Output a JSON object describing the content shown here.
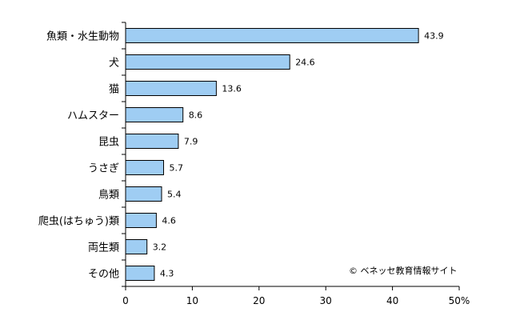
{
  "chart_data": {
    "type": "bar",
    "orientation": "horizontal",
    "categories": [
      "魚類・水生動物",
      "犬",
      "猫",
      "ハムスター",
      "昆虫",
      "うさぎ",
      "鳥類",
      "爬虫(はちゅう)類",
      "両生類",
      "その他"
    ],
    "values": [
      43.9,
      24.6,
      13.6,
      8.6,
      7.9,
      5.7,
      5.4,
      4.6,
      3.2,
      4.3
    ],
    "value_labels": [
      "43.9",
      "24.6",
      "13.6",
      "8.6",
      "7.9",
      "5.7",
      "5.4",
      "4.6",
      "3.2",
      "4.3"
    ],
    "xlim": [
      0,
      50
    ],
    "xticks": [
      0,
      10,
      20,
      30,
      40,
      50
    ],
    "xtick_labels": [
      "0",
      "10",
      "20",
      "30",
      "40",
      "50%"
    ],
    "grid": false,
    "bar_color": "#9fcdf3",
    "bar_edge_color": "#000000"
  },
  "credit": "© ベネッセ教育情報サイト"
}
